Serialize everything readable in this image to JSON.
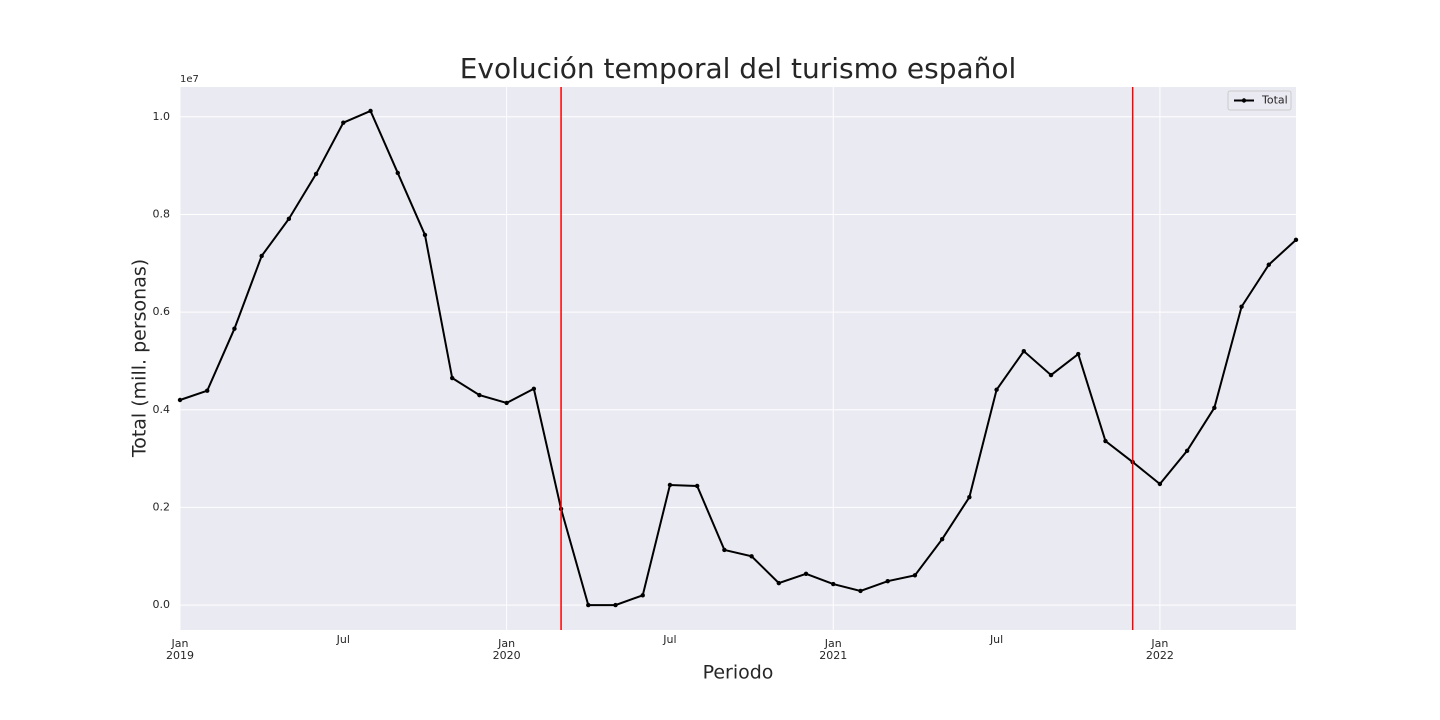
{
  "chart_data": {
    "type": "line",
    "title": "Evolución temporal del turismo español",
    "xlabel": "Periodo",
    "ylabel": "Total (mill. personas)",
    "y_offset_label": "1e7",
    "x": [
      "2019-01",
      "2019-02",
      "2019-03",
      "2019-04",
      "2019-05",
      "2019-06",
      "2019-07",
      "2019-08",
      "2019-09",
      "2019-10",
      "2019-11",
      "2019-12",
      "2020-01",
      "2020-02",
      "2020-03",
      "2020-04",
      "2020-05",
      "2020-06",
      "2020-07",
      "2020-08",
      "2020-09",
      "2020-10",
      "2020-11",
      "2020-12",
      "2021-01",
      "2021-02",
      "2021-03",
      "2021-04",
      "2021-05",
      "2021-06",
      "2021-07",
      "2021-08",
      "2021-09",
      "2021-10",
      "2021-11",
      "2021-12",
      "2022-01",
      "2022-02",
      "2022-03",
      "2022-04",
      "2022-05",
      "2022-06"
    ],
    "series": [
      {
        "name": "Total",
        "color": "#000000",
        "values": [
          0.42,
          0.439,
          0.566,
          0.715,
          0.791,
          0.883,
          0.988,
          1.012,
          0.885,
          0.758,
          0.465,
          0.43,
          0.414,
          0.443,
          0.197,
          0.0,
          0.0,
          0.02,
          0.246,
          0.244,
          0.113,
          0.1,
          0.045,
          0.064,
          0.043,
          0.029,
          0.049,
          0.061,
          0.135,
          0.221,
          0.441,
          0.52,
          0.471,
          0.514,
          0.336,
          0.293,
          0.248,
          0.316,
          0.404,
          0.611,
          0.697,
          0.748
        ]
      }
    ],
    "vlines": {
      "x": [
        "2020-03",
        "2021-12"
      ],
      "color": "#ff0000"
    },
    "xlim": [
      "2019-01",
      "2022-06"
    ],
    "xticks": [
      {
        "value": "2019-01",
        "label": "Jan",
        "sublabel": "2019"
      },
      {
        "value": "2020-01",
        "label": "Jan",
        "sublabel": "2020"
      },
      {
        "value": "2021-01",
        "label": "Jan",
        "sublabel": "2021"
      },
      {
        "value": "2022-01",
        "label": "Jan",
        "sublabel": "2022"
      }
    ],
    "xminorticks": [
      {
        "value": "2019-07",
        "label": "Jul"
      },
      {
        "value": "2020-07",
        "label": "Jul"
      },
      {
        "value": "2021-07",
        "label": "Jul"
      }
    ],
    "ylim": [
      -0.051,
      1.061
    ],
    "yticks": [
      {
        "value": 0,
        "label": "0.0"
      },
      0.2,
      0.4,
      0.6,
      0.8,
      {
        "value": 1,
        "label": "1.0"
      }
    ],
    "grid": true,
    "legend": "upper right"
  }
}
